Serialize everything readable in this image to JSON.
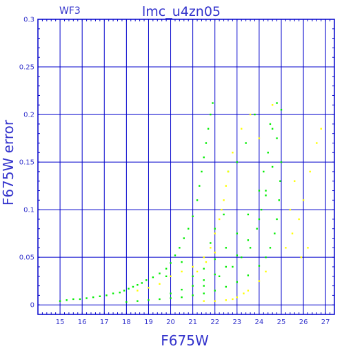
{
  "chart_data": {
    "type": "scatter",
    "title": "lmc_u4zn05",
    "chip_label": "WF3",
    "xlabel": "F675W",
    "ylabel": "F675W error",
    "xlim": [
      14,
      27.4
    ],
    "ylim": [
      -0.01,
      0.3
    ],
    "xticks": [
      15,
      16,
      17,
      18,
      19,
      20,
      21,
      22,
      23,
      24,
      25,
      26,
      27
    ],
    "yticks": [
      0,
      0.05,
      0.1,
      0.15,
      0.2,
      0.25,
      0.3
    ],
    "ytick_labels": [
      "0",
      "0.05",
      "0.1",
      "0.15",
      "0.2",
      "0.25",
      "0.3"
    ],
    "grid": true,
    "colors": {
      "axis": "#0000cc",
      "text": "#3333cc",
      "green": "#00ee00",
      "yellow": "#ffff00"
    },
    "series": [
      {
        "color": "#00ee00",
        "points": [
          [
            15.0,
            0.004
          ],
          [
            15.3,
            0.005
          ],
          [
            15.6,
            0.006
          ],
          [
            15.9,
            0.006
          ],
          [
            16.2,
            0.007
          ],
          [
            16.5,
            0.008
          ],
          [
            16.8,
            0.009
          ],
          [
            17.1,
            0.01
          ],
          [
            17.4,
            0.012
          ],
          [
            17.7,
            0.013
          ],
          [
            17.9,
            0.015
          ],
          [
            18.1,
            0.017
          ],
          [
            18.3,
            0.019
          ],
          [
            18.5,
            0.021
          ],
          [
            18.7,
            0.023
          ],
          [
            18.9,
            0.026
          ],
          [
            19.2,
            0.029
          ],
          [
            19.5,
            0.033
          ],
          [
            19.8,
            0.038
          ],
          [
            20.0,
            0.044
          ],
          [
            20.2,
            0.052
          ],
          [
            20.4,
            0.06
          ],
          [
            20.6,
            0.07
          ],
          [
            20.8,
            0.08
          ],
          [
            21.0,
            0.093
          ],
          [
            21.2,
            0.11
          ],
          [
            21.3,
            0.125
          ],
          [
            21.4,
            0.14
          ],
          [
            21.5,
            0.155
          ],
          [
            21.6,
            0.17
          ],
          [
            21.7,
            0.185
          ],
          [
            21.8,
            0.2
          ],
          [
            21.9,
            0.212
          ],
          [
            18.0,
            0.003
          ],
          [
            18.5,
            0.004
          ],
          [
            19.0,
            0.005
          ],
          [
            19.5,
            0.006
          ],
          [
            20.0,
            0.007
          ],
          [
            20.5,
            0.008
          ],
          [
            21.0,
            0.01
          ],
          [
            21.5,
            0.012
          ],
          [
            22.0,
            0.015
          ],
          [
            22.5,
            0.019
          ],
          [
            23.0,
            0.024
          ],
          [
            23.5,
            0.031
          ],
          [
            24.0,
            0.041
          ],
          [
            24.3,
            0.05
          ],
          [
            24.5,
            0.06
          ],
          [
            24.7,
            0.075
          ],
          [
            24.8,
            0.09
          ],
          [
            24.9,
            0.11
          ],
          [
            24.95,
            0.13
          ],
          [
            25.0,
            0.15
          ],
          [
            20.0,
            0.012
          ],
          [
            20.5,
            0.016
          ],
          [
            21.0,
            0.02
          ],
          [
            21.5,
            0.026
          ],
          [
            22.0,
            0.032
          ],
          [
            22.5,
            0.04
          ],
          [
            23.0,
            0.052
          ],
          [
            23.5,
            0.068
          ],
          [
            24.0,
            0.09
          ],
          [
            24.3,
            0.115
          ],
          [
            24.6,
            0.145
          ],
          [
            24.8,
            0.175
          ],
          [
            25.0,
            0.205
          ],
          [
            21.0,
            0.03
          ],
          [
            21.5,
            0.038
          ],
          [
            22.0,
            0.048
          ],
          [
            22.5,
            0.06
          ],
          [
            23.0,
            0.075
          ],
          [
            23.5,
            0.095
          ],
          [
            24.0,
            0.12
          ],
          [
            24.2,
            0.14
          ],
          [
            24.4,
            0.16
          ],
          [
            24.6,
            0.185
          ],
          [
            24.8,
            0.212
          ],
          [
            21.5,
            0.02
          ],
          [
            22.2,
            0.03
          ],
          [
            22.8,
            0.04
          ],
          [
            23.2,
            0.05
          ],
          [
            23.6,
            0.06
          ],
          [
            23.9,
            0.08
          ],
          [
            24.1,
            0.1
          ],
          [
            24.3,
            0.12
          ],
          [
            23.0,
            0.15
          ],
          [
            23.4,
            0.17
          ],
          [
            22.0,
            0.08
          ],
          [
            22.4,
            0.095
          ],
          [
            21.8,
            0.065
          ],
          [
            20.5,
            0.045
          ],
          [
            19.8,
            0.03
          ],
          [
            22.6,
            0.14
          ],
          [
            23.8,
            0.2
          ],
          [
            24.5,
            0.19
          ]
        ]
      },
      {
        "color": "#ffff00",
        "points": [
          [
            18.5,
            0.015
          ],
          [
            19.0,
            0.018
          ],
          [
            19.5,
            0.022
          ],
          [
            20.0,
            0.03
          ],
          [
            20.5,
            0.035
          ],
          [
            21.0,
            0.04
          ],
          [
            21.5,
            0.05
          ],
          [
            21.8,
            0.06
          ],
          [
            22.0,
            0.075
          ],
          [
            22.2,
            0.09
          ],
          [
            22.4,
            0.11
          ],
          [
            22.5,
            0.125
          ],
          [
            22.3,
            0.1
          ],
          [
            22.6,
            0.14
          ],
          [
            22.0,
            0.055
          ],
          [
            21.6,
            0.045
          ],
          [
            21.2,
            0.035
          ],
          [
            21.5,
            0.004
          ],
          [
            22.0,
            0.004
          ],
          [
            22.5,
            0.005
          ],
          [
            23.0,
            0.008
          ],
          [
            23.5,
            0.015
          ],
          [
            24.0,
            0.025
          ],
          [
            24.3,
            0.035
          ],
          [
            23.3,
            0.012
          ],
          [
            22.8,
            0.006
          ],
          [
            25.2,
            0.06
          ],
          [
            25.5,
            0.075
          ],
          [
            25.8,
            0.09
          ],
          [
            26.0,
            0.11
          ],
          [
            25.4,
            0.1
          ],
          [
            25.6,
            0.13
          ],
          [
            26.3,
            0.14
          ],
          [
            26.6,
            0.17
          ],
          [
            26.8,
            0.185
          ],
          [
            26.2,
            0.06
          ],
          [
            25.9,
            0.05
          ],
          [
            23.6,
            0.2
          ],
          [
            24.0,
            0.175
          ],
          [
            23.2,
            0.185
          ],
          [
            22.8,
            0.16
          ],
          [
            24.6,
            0.21
          ]
        ]
      }
    ]
  }
}
